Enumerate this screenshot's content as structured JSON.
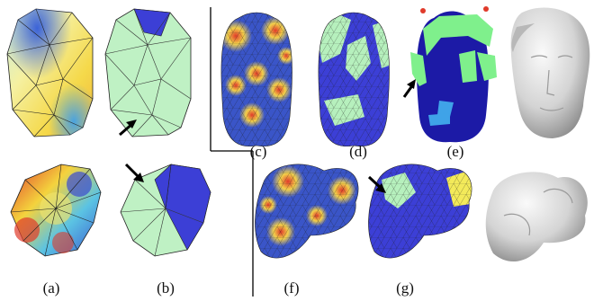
{
  "captions": {
    "a": "(a)",
    "b": "(b)",
    "c": "(c)",
    "d": "(d)",
    "e": "(e)",
    "f": "(f)",
    "g": "(g)"
  },
  "colors": {
    "segment_green": "#b6f0bd",
    "segment_blue": "#3c3fd6",
    "segment_yellow": "#f3ea5a",
    "arrow": "#000000",
    "divider": "#000000"
  }
}
